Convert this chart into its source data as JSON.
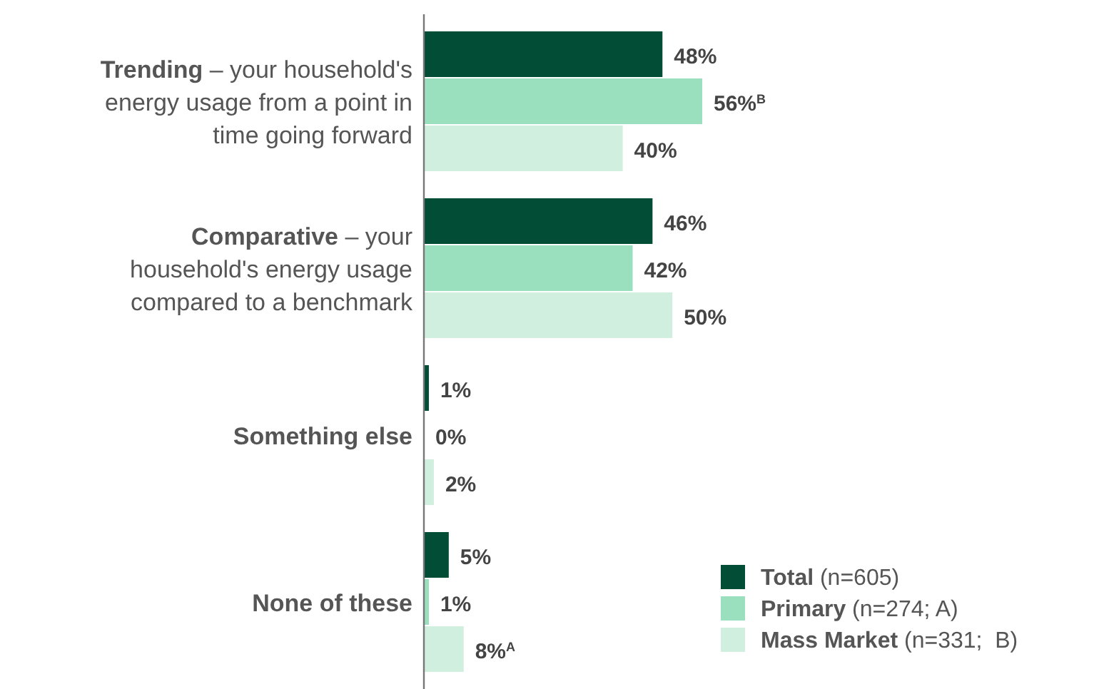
{
  "chart_data": {
    "type": "bar",
    "orientation": "horizontal",
    "categories": [
      "Trending – your household's energy usage from a point in time going forward",
      "Comparative – your household's energy usage compared to a benchmark",
      "Something else",
      "None of these"
    ],
    "series": [
      {
        "name": "Total (n=605)",
        "color": "#024d36",
        "values": [
          48,
          46,
          1,
          5
        ],
        "value_labels": [
          "48%",
          "46%",
          "1%",
          "5%"
        ]
      },
      {
        "name": "Primary (n=274; A)",
        "color": "#9adfbe",
        "values": [
          56,
          42,
          0,
          1
        ],
        "value_labels": [
          "56%$^{B}$",
          "42%",
          "0%",
          "1%"
        ]
      },
      {
        "name": "Mass Market (n=331;  B)",
        "color": "#d0efdf",
        "values": [
          40,
          50,
          2,
          8
        ],
        "value_labels": [
          "40%",
          "50%",
          "2%",
          "8%$^{A}$"
        ]
      }
    ],
    "legend": "bottom right"
  }
}
